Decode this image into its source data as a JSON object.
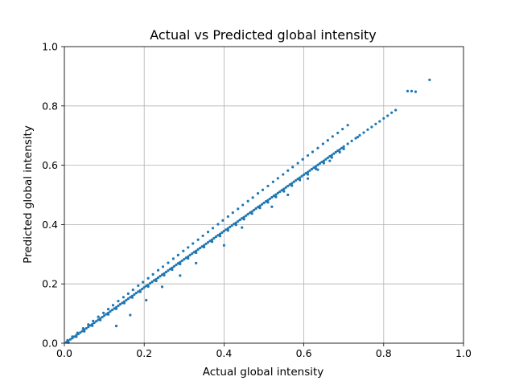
{
  "chart_data": {
    "type": "scatter",
    "title": "Actual vs Predicted global intensity",
    "xlabel": "Actual global intensity",
    "ylabel": "Predicted global intensity",
    "xlim": [
      0,
      1
    ],
    "ylim": [
      0,
      1
    ],
    "xticks": [
      0.0,
      0.2,
      0.4,
      0.6,
      0.8,
      1.0
    ],
    "yticks": [
      0.0,
      0.2,
      0.4,
      0.6,
      0.8,
      1.0
    ],
    "xtick_labels": [
      "0.0",
      "0.2",
      "0.4",
      "0.6",
      "0.8",
      "1.0"
    ],
    "ytick_labels": [
      "0.0",
      "0.2",
      "0.4",
      "0.6",
      "0.8",
      "1.0"
    ],
    "grid": true,
    "marker_color": "#1f77b4",
    "series": [
      {
        "x": [
          0.005,
          0.01,
          0.015,
          0.02,
          0.025,
          0.03,
          0.035,
          0.04,
          0.045,
          0.05,
          0.055,
          0.06,
          0.065,
          0.07,
          0.075,
          0.08,
          0.085,
          0.09,
          0.095,
          0.1,
          0.105,
          0.11,
          0.115,
          0.12,
          0.125,
          0.13,
          0.135,
          0.14,
          0.145,
          0.15,
          0.155,
          0.16,
          0.165,
          0.17,
          0.175,
          0.18,
          0.185,
          0.19,
          0.195,
          0.2,
          0.205,
          0.21,
          0.215,
          0.22,
          0.225,
          0.23,
          0.235,
          0.24,
          0.245,
          0.25,
          0.255,
          0.26,
          0.265,
          0.27,
          0.275,
          0.28,
          0.285,
          0.29,
          0.295,
          0.3,
          0.305,
          0.31,
          0.315,
          0.32,
          0.325,
          0.33,
          0.335,
          0.34,
          0.345,
          0.35,
          0.355,
          0.36,
          0.365,
          0.37,
          0.375,
          0.38,
          0.385,
          0.39,
          0.395,
          0.4,
          0.405,
          0.41,
          0.415,
          0.42,
          0.425,
          0.43,
          0.435,
          0.44,
          0.445,
          0.45,
          0.455,
          0.46,
          0.465,
          0.47,
          0.475,
          0.48,
          0.485,
          0.49,
          0.495,
          0.5,
          0.505,
          0.51,
          0.515,
          0.52,
          0.525,
          0.53,
          0.535,
          0.54,
          0.545,
          0.55,
          0.555,
          0.56,
          0.565,
          0.57,
          0.575,
          0.58,
          0.585,
          0.59,
          0.595,
          0.6,
          0.605,
          0.61,
          0.615,
          0.62,
          0.625,
          0.63,
          0.635,
          0.64,
          0.645,
          0.65,
          0.655,
          0.66,
          0.665,
          0.67,
          0.675,
          0.68,
          0.685,
          0.69,
          0.695,
          0.7,
          0.71,
          0.72,
          0.73,
          0.74,
          0.75,
          0.76,
          0.77,
          0.78,
          0.79,
          0.8,
          0.81,
          0.82,
          0.83,
          0.86,
          0.87,
          0.88,
          0.915,
          0.008,
          0.02,
          0.033,
          0.047,
          0.06,
          0.072,
          0.085,
          0.098,
          0.11,
          0.122,
          0.135,
          0.148,
          0.16,
          0.172,
          0.185,
          0.197,
          0.21,
          0.222,
          0.235,
          0.247,
          0.26,
          0.273,
          0.285,
          0.298,
          0.31,
          0.322,
          0.335,
          0.347,
          0.36,
          0.372,
          0.385,
          0.397,
          0.41,
          0.422,
          0.435,
          0.447,
          0.46,
          0.472,
          0.485,
          0.497,
          0.51,
          0.523,
          0.535,
          0.548,
          0.56,
          0.572,
          0.585,
          0.597,
          0.61,
          0.622,
          0.635,
          0.648,
          0.66,
          0.672,
          0.685,
          0.697,
          0.71,
          0.01,
          0.03,
          0.05,
          0.07,
          0.09,
          0.11,
          0.13,
          0.15,
          0.17,
          0.19,
          0.21,
          0.23,
          0.25,
          0.27,
          0.29,
          0.31,
          0.33,
          0.35,
          0.37,
          0.39,
          0.41,
          0.43,
          0.45,
          0.47,
          0.49,
          0.51,
          0.53,
          0.55,
          0.57,
          0.59,
          0.61,
          0.63,
          0.65,
          0.67,
          0.69,
          0.13,
          0.165,
          0.205,
          0.245,
          0.29,
          0.33,
          0.4,
          0.445,
          0.52,
          0.56,
          0.61,
          0.635,
          0.665,
          0.7,
          0.735
        ],
        "y": [
          0.003,
          0.008,
          0.013,
          0.017,
          0.022,
          0.027,
          0.031,
          0.036,
          0.041,
          0.046,
          0.05,
          0.055,
          0.06,
          0.064,
          0.069,
          0.074,
          0.079,
          0.083,
          0.088,
          0.093,
          0.098,
          0.102,
          0.107,
          0.112,
          0.117,
          0.121,
          0.126,
          0.131,
          0.136,
          0.14,
          0.145,
          0.15,
          0.155,
          0.159,
          0.164,
          0.169,
          0.174,
          0.178,
          0.183,
          0.188,
          0.193,
          0.197,
          0.202,
          0.207,
          0.212,
          0.216,
          0.221,
          0.226,
          0.231,
          0.235,
          0.24,
          0.245,
          0.25,
          0.254,
          0.259,
          0.264,
          0.269,
          0.273,
          0.278,
          0.283,
          0.288,
          0.292,
          0.297,
          0.302,
          0.307,
          0.311,
          0.316,
          0.321,
          0.326,
          0.33,
          0.335,
          0.34,
          0.345,
          0.349,
          0.354,
          0.359,
          0.364,
          0.368,
          0.373,
          0.378,
          0.383,
          0.387,
          0.392,
          0.397,
          0.402,
          0.406,
          0.411,
          0.416,
          0.421,
          0.425,
          0.43,
          0.435,
          0.44,
          0.444,
          0.449,
          0.454,
          0.459,
          0.463,
          0.468,
          0.473,
          0.478,
          0.482,
          0.487,
          0.492,
          0.497,
          0.501,
          0.506,
          0.511,
          0.516,
          0.52,
          0.525,
          0.53,
          0.535,
          0.539,
          0.544,
          0.549,
          0.554,
          0.558,
          0.563,
          0.568,
          0.573,
          0.577,
          0.582,
          0.587,
          0.592,
          0.596,
          0.601,
          0.606,
          0.611,
          0.615,
          0.62,
          0.625,
          0.63,
          0.634,
          0.639,
          0.644,
          0.649,
          0.653,
          0.658,
          0.663,
          0.672,
          0.682,
          0.691,
          0.701,
          0.71,
          0.72,
          0.729,
          0.739,
          0.748,
          0.758,
          0.767,
          0.777,
          0.786,
          0.85,
          0.85,
          0.848,
          0.888,
          0.01,
          0.022,
          0.035,
          0.05,
          0.063,
          0.075,
          0.089,
          0.102,
          0.115,
          0.128,
          0.142,
          0.155,
          0.167,
          0.18,
          0.194,
          0.206,
          0.219,
          0.232,
          0.246,
          0.258,
          0.271,
          0.285,
          0.297,
          0.311,
          0.323,
          0.336,
          0.349,
          0.362,
          0.375,
          0.388,
          0.401,
          0.414,
          0.427,
          0.44,
          0.453,
          0.466,
          0.479,
          0.491,
          0.505,
          0.517,
          0.53,
          0.544,
          0.556,
          0.569,
          0.582,
          0.594,
          0.607,
          0.62,
          0.633,
          0.645,
          0.658,
          0.672,
          0.684,
          0.697,
          0.709,
          0.722,
          0.735,
          0.002,
          0.022,
          0.04,
          0.059,
          0.078,
          0.097,
          0.116,
          0.135,
          0.154,
          0.173,
          0.191,
          0.21,
          0.229,
          0.248,
          0.267,
          0.286,
          0.305,
          0.324,
          0.342,
          0.361,
          0.38,
          0.399,
          0.418,
          0.437,
          0.456,
          0.475,
          0.493,
          0.512,
          0.531,
          0.55,
          0.569,
          0.588,
          0.607,
          0.626,
          0.644,
          0.058,
          0.095,
          0.145,
          0.19,
          0.228,
          0.27,
          0.33,
          0.39,
          0.46,
          0.5,
          0.555,
          0.585,
          0.615,
          0.655,
          0.695
        ]
      }
    ]
  }
}
